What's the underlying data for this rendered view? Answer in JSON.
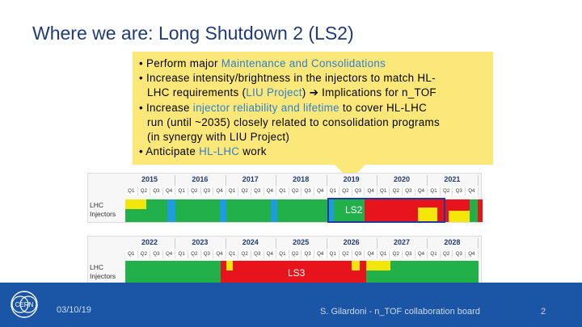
{
  "slide": {
    "title": "Where we are: Long Shutdown 2 (LS2)"
  },
  "callout": {
    "bullets": [
      {
        "parts": [
          {
            "t": "• Perform major "
          },
          {
            "t": "Maintenance and Consolidations",
            "hl": true
          }
        ]
      },
      {
        "parts": [
          {
            "t": "• Increase intensity/brightness in the injectors to match HL-"
          }
        ],
        "cont": [
          {
            "parts": [
              {
                "t": "LHC requirements ("
              },
              {
                "t": "LIU Project",
                "hl": true
              },
              {
                "t": ") ➔ Implications for n_TOF"
              }
            ]
          }
        ]
      },
      {
        "parts": [
          {
            "t": "• Increase "
          },
          {
            "t": "injector reliability and lifetime",
            "hl": true
          },
          {
            "t": " to cover HL-LHC"
          }
        ],
        "cont": [
          {
            "parts": [
              {
                "t": "run (until ~2035) closely related to consolidation programs"
              }
            ]
          },
          {
            "parts": [
              {
                "t": "(in synergy with LIU Project)"
              }
            ]
          }
        ]
      },
      {
        "parts": [
          {
            "t": "• Anticipate "
          },
          {
            "t": "HL-LHC",
            "hl": true
          },
          {
            "t": " work"
          }
        ]
      }
    ]
  },
  "schedule_top": {
    "years": [
      "2015",
      "2016",
      "2017",
      "2018",
      "2019",
      "2020",
      "2021"
    ],
    "quarters": [
      "Q1",
      "Q2",
      "Q3",
      "Q4"
    ],
    "rows": [
      "LHC",
      "Injectors"
    ],
    "shutdown_label": "LS2"
  },
  "schedule_bottom": {
    "years": [
      "2022",
      "2023",
      "2024",
      "2025",
      "2026",
      "2027",
      "2028"
    ],
    "quarters": [
      "Q1",
      "Q2",
      "Q3",
      "Q4"
    ],
    "rows": [
      "LHC",
      "Injectors"
    ],
    "shutdown_label": "LS3"
  },
  "footer": {
    "date": "03/10/19",
    "credit": "S. Gilardoni - n_TOF collaboration board",
    "page": "2",
    "logo_text": "CERN"
  },
  "colors": {
    "title": "#1f3a78",
    "callout_bg": "#fbe878",
    "highlight": "#2f7fd1",
    "run_green": "#22b04a",
    "shutdown_red": "#e8141c",
    "yellow": "#f5e60a",
    "blue_tech": "#1f9be0",
    "footer_bg": "#1a55a6"
  }
}
